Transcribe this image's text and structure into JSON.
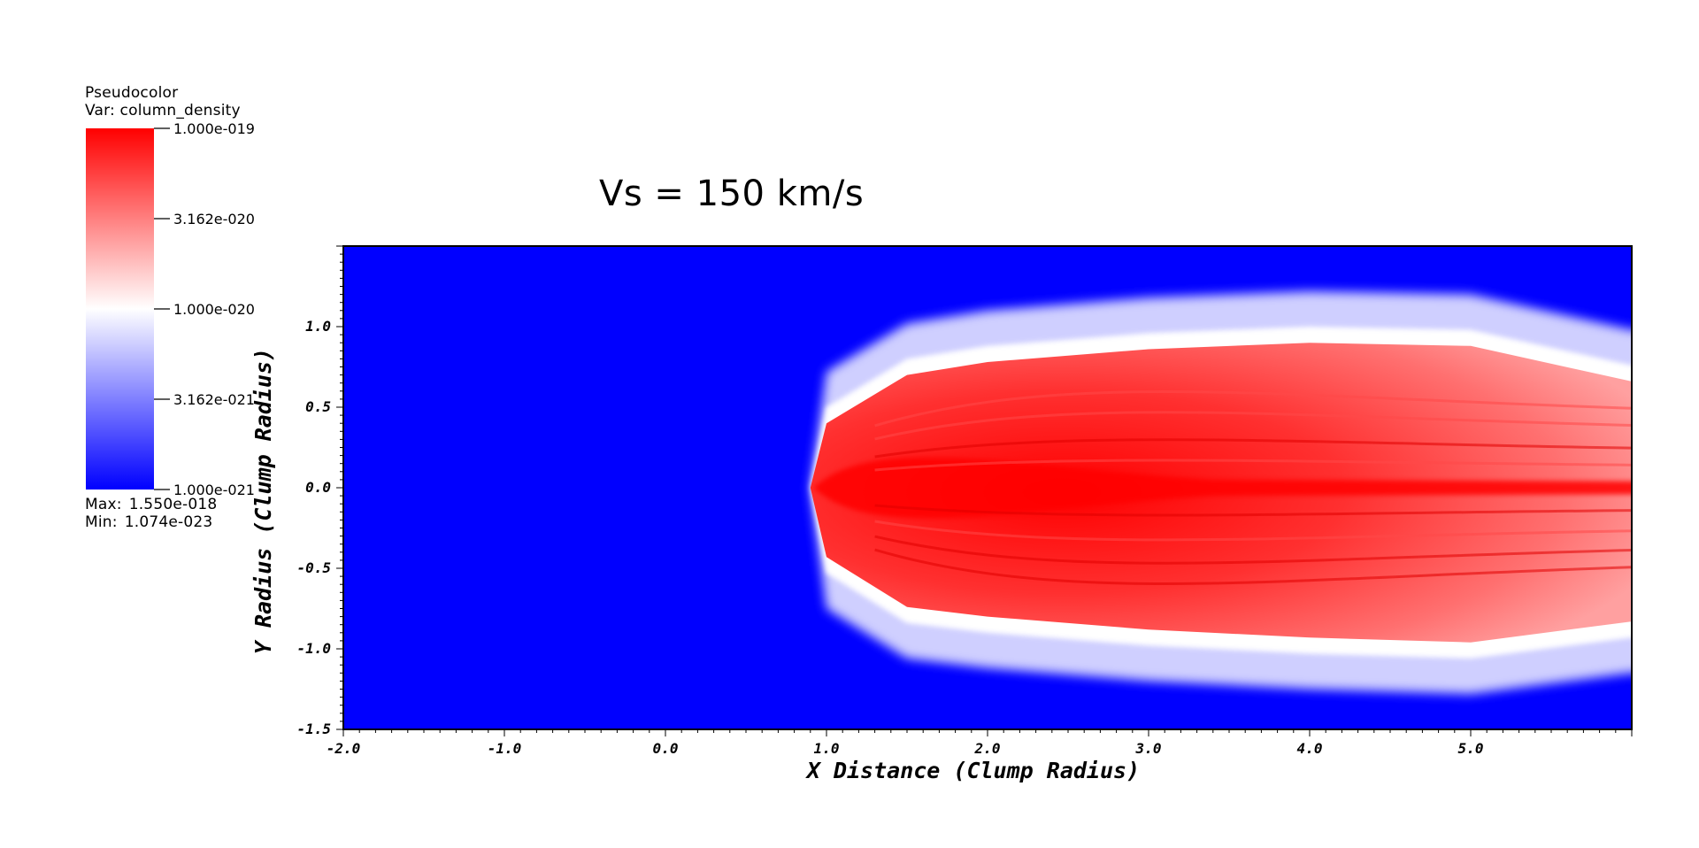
{
  "legend": {
    "plot_type": "Pseudocolor",
    "variable": "Var: column_density",
    "max_label": "Max:",
    "max_value": "1.550e-018",
    "min_label": "Min:",
    "min_value": "1.074e-023",
    "ticks": [
      "1.000e-019",
      "3.162e-020",
      "1.000e-020",
      "3.162e-021",
      "1.000e-021"
    ],
    "colors": {
      "high": "#ff0000",
      "mid": "#ffffff",
      "low": "#0000ff"
    }
  },
  "chart_data": {
    "type": "heatmap",
    "title": "Vs = 150 km/s",
    "xlabel": "X Distance (Clump Radius)",
    "ylabel": "Y Radius (Clump Radius)",
    "xlim": [
      -2.0,
      6.0
    ],
    "ylim": [
      -1.5,
      1.5
    ],
    "x_ticks": [
      -2.0,
      -1.0,
      0.0,
      1.0,
      2.0,
      3.0,
      4.0,
      5.0
    ],
    "x_tick_labels": [
      "-2.0",
      "-1.0",
      "0.0",
      "1.0",
      "2.0",
      "3.0",
      "4.0",
      "5.0"
    ],
    "y_ticks": [
      -1.5,
      -1.0,
      -0.5,
      0.0,
      0.5,
      1.0
    ],
    "y_tick_labels": [
      "-1.5",
      "-1.0",
      "-0.5",
      "0.0",
      "0.5",
      "1.0"
    ],
    "colormap": "blue-white-red (log scale)",
    "color_range": [
      1e-21,
      1e-19
    ],
    "grid": false,
    "background_color": "#0000ff",
    "feature": {
      "description_source": "shocked clump column density",
      "head_x": 0.9,
      "tail_x": 6.0,
      "envelope": [
        {
          "x": 0.9,
          "top": 0.0,
          "bot": 0.0
        },
        {
          "x": 1.0,
          "top": 0.42,
          "bot": -0.45
        },
        {
          "x": 1.5,
          "top": 0.72,
          "bot": -0.76
        },
        {
          "x": 2.0,
          "top": 0.8,
          "bot": -0.82
        },
        {
          "x": 3.0,
          "top": 0.88,
          "bot": -0.9
        },
        {
          "x": 4.0,
          "top": 0.92,
          "bot": -0.95
        },
        {
          "x": 5.0,
          "top": 0.9,
          "bot": -0.98
        },
        {
          "x": 6.0,
          "top": 0.68,
          "bot": -0.85
        }
      ]
    }
  }
}
